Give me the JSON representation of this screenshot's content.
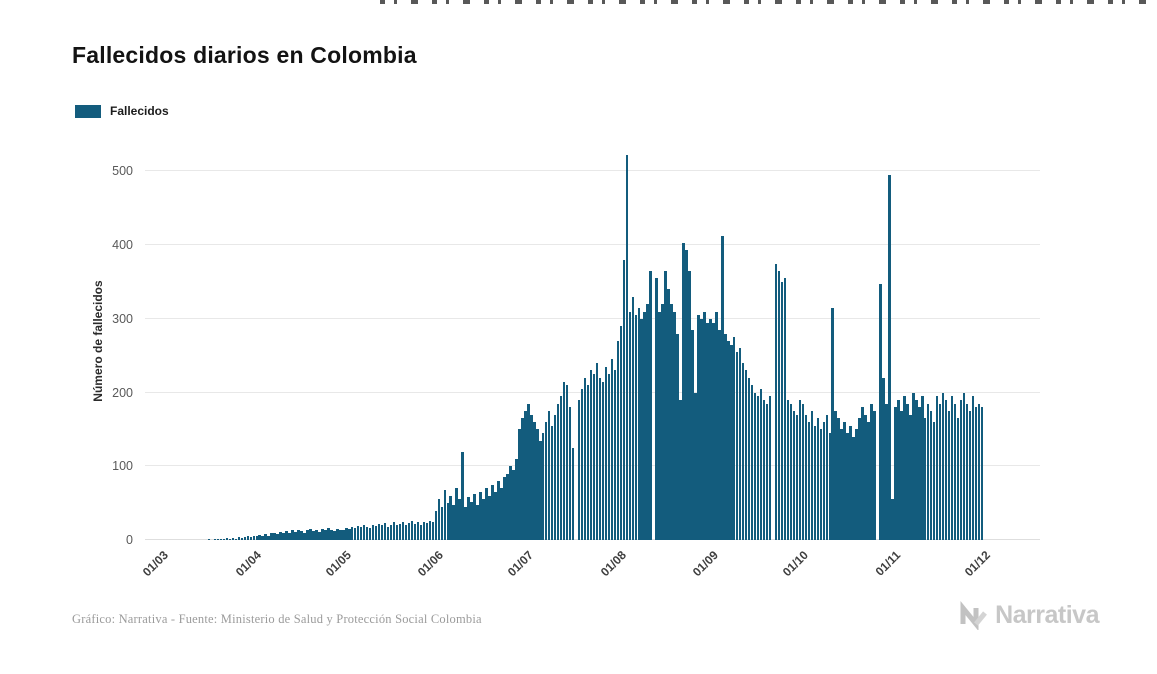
{
  "page": {
    "title": "Fallecidos diarios en Colombia",
    "footer_credit": "Gráfico: Narrativa - Fuente: Ministerio de Salud y Protección Social Colombia",
    "brand_name": "Narrativa"
  },
  "legend": {
    "label": "Fallecidos",
    "color": "#135C7D"
  },
  "chart_data": {
    "type": "bar",
    "title": "Fallecidos diarios en Colombia",
    "xlabel": "",
    "ylabel": "Número de fallecidos",
    "series_name": "Fallecidos",
    "bar_color": "#135C7D",
    "grid": true,
    "legend_position": "top-left",
    "ylim": [
      0,
      540
    ],
    "yticks": [
      0,
      100,
      200,
      300,
      400,
      500
    ],
    "x_tick_labels": [
      "01/03",
      "01/04",
      "01/05",
      "01/06",
      "01/07",
      "01/08",
      "01/09",
      "01/10",
      "01/11",
      "01/12"
    ],
    "x_tick_day_index": [
      0,
      31,
      61,
      92,
      122,
      153,
      184,
      214,
      245,
      275
    ],
    "x_unit": "day",
    "values": [
      0,
      0,
      0,
      0,
      0,
      0,
      0,
      0,
      0,
      0,
      0,
      0,
      0,
      0,
      0,
      0,
      1,
      0,
      1,
      2,
      1,
      2,
      3,
      2,
      3,
      2,
      4,
      3,
      4,
      5,
      4,
      5,
      6,
      7,
      5,
      8,
      6,
      9,
      10,
      8,
      11,
      9,
      12,
      10,
      13,
      11,
      14,
      12,
      10,
      13,
      15,
      12,
      14,
      11,
      15,
      13,
      16,
      14,
      12,
      15,
      13,
      14,
      16,
      15,
      18,
      16,
      19,
      17,
      20,
      18,
      16,
      21,
      19,
      22,
      20,
      23,
      18,
      21,
      24,
      20,
      22,
      25,
      21,
      23,
      26,
      22,
      24,
      20,
      25,
      23,
      26,
      24,
      40,
      55,
      45,
      68,
      50,
      60,
      48,
      70,
      55,
      120,
      45,
      58,
      52,
      62,
      48,
      65,
      55,
      70,
      60,
      75,
      65,
      80,
      70,
      85,
      90,
      100,
      95,
      110,
      150,
      165,
      175,
      185,
      170,
      160,
      150,
      135,
      145,
      160,
      175,
      155,
      170,
      185,
      195,
      215,
      210,
      180,
      125,
      0,
      190,
      205,
      220,
      210,
      230,
      225,
      240,
      220,
      215,
      235,
      225,
      245,
      230,
      270,
      290,
      380,
      523,
      310,
      330,
      305,
      315,
      300,
      310,
      320,
      365,
      0,
      355,
      310,
      320,
      365,
      340,
      320,
      310,
      280,
      190,
      403,
      393,
      365,
      285,
      200,
      305,
      300,
      310,
      295,
      300,
      295,
      310,
      285,
      412,
      280,
      270,
      265,
      275,
      255,
      260,
      240,
      230,
      220,
      210,
      200,
      195,
      205,
      190,
      185,
      195,
      0,
      375,
      365,
      350,
      355,
      190,
      185,
      175,
      170,
      190,
      185,
      170,
      160,
      175,
      155,
      165,
      150,
      160,
      170,
      145,
      315,
      175,
      165,
      150,
      160,
      145,
      155,
      140,
      150,
      165,
      180,
      170,
      160,
      185,
      175,
      0,
      347,
      220,
      185,
      495,
      55,
      180,
      190,
      175,
      195,
      185,
      170,
      200,
      190,
      180,
      195,
      165,
      185,
      175,
      160,
      195,
      185,
      200,
      190,
      175,
      195,
      185,
      165,
      190,
      200,
      185,
      175,
      195,
      180,
      185,
      180
    ]
  }
}
